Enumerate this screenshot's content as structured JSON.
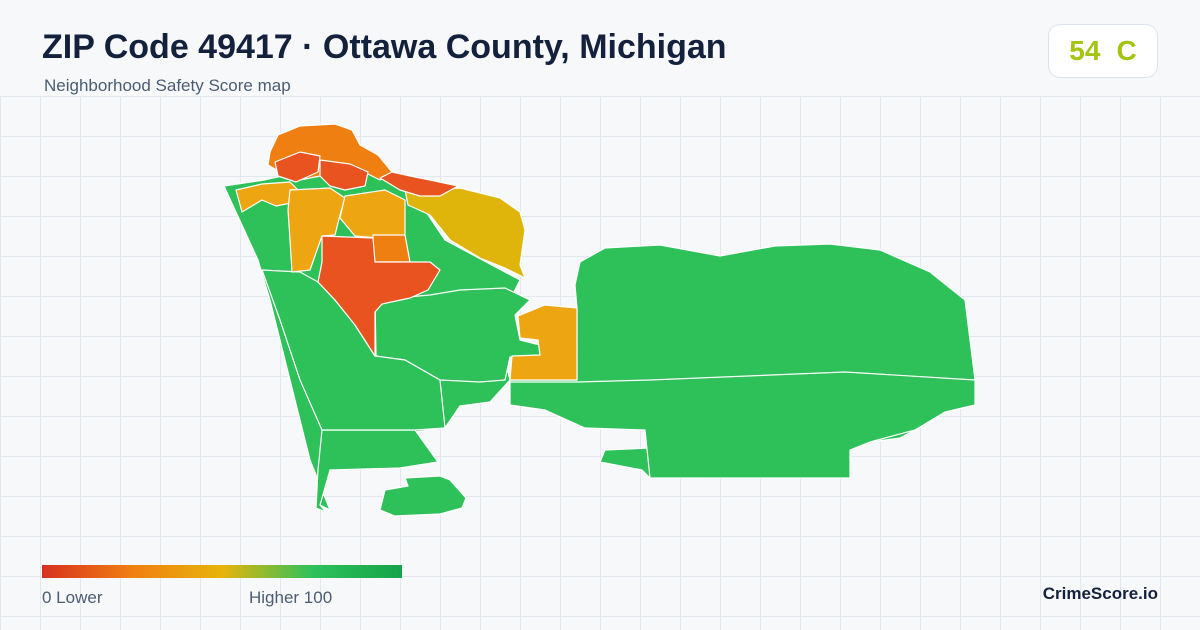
{
  "header": {
    "title": "ZIP Code 49417 · Ottawa County, Michigan",
    "subtitle": "Neighborhood Safety Score map"
  },
  "score": {
    "value": "54",
    "grade": "C",
    "color": "#a3c411"
  },
  "map": {
    "palette": {
      "red": "#e8531f",
      "orange": "#f07f12",
      "amber": "#eda512",
      "gold": "#dfb50c",
      "green": "#2ec15a"
    },
    "regions": [
      {
        "name": "north-harbor-tract",
        "score_band": "orange"
      },
      {
        "name": "harbor-shore-tract",
        "score_band": "red"
      },
      {
        "name": "north-central-tract-a",
        "score_band": "red"
      },
      {
        "name": "north-central-tract-b",
        "score_band": "red"
      },
      {
        "name": "northwest-tract",
        "score_band": "amber"
      },
      {
        "name": "central-tract",
        "score_band": "amber"
      },
      {
        "name": "north-inner-tract",
        "score_band": "amber"
      },
      {
        "name": "downtown-tract",
        "score_band": "red"
      },
      {
        "name": "east-downtown-tract",
        "score_band": "orange"
      },
      {
        "name": "lakeside-tract",
        "score_band": "gold"
      },
      {
        "name": "west-shore-tract",
        "score_band": "green"
      },
      {
        "name": "midtown-east-tract",
        "score_band": "green"
      },
      {
        "name": "south-central-tract",
        "score_band": "amber"
      },
      {
        "name": "east-peninsula-tract",
        "score_band": "green"
      },
      {
        "name": "south-tract",
        "score_band": "green"
      },
      {
        "name": "southwest-tract",
        "score_band": "green"
      },
      {
        "name": "southeast-tract",
        "score_band": "green"
      },
      {
        "name": "island-tract",
        "score_band": "green"
      }
    ]
  },
  "legend": {
    "min_label": "0  Lower",
    "max_label": "Higher  100"
  },
  "brand": "CrimeScore.io"
}
